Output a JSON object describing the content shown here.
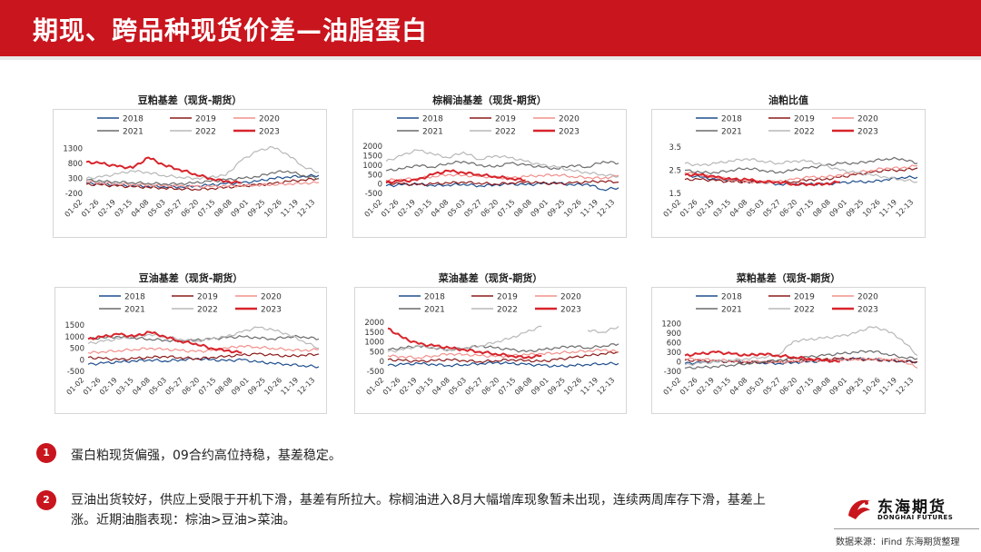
{
  "header": {
    "title": "期现、跨品种现货价差—油脂蛋白"
  },
  "colors": {
    "brand": "#c9151e",
    "2018": "#1f4e8c",
    "2019": "#8b1a1a",
    "2020": "#f0908c",
    "2021": "#6b6b6b",
    "2022": "#b8b8b8",
    "2023": "#d7242b"
  },
  "legend_years": [
    "2018",
    "2019",
    "2020",
    "2021",
    "2022",
    "2023"
  ],
  "x_ticks": [
    "01-02",
    "01-26",
    "02-19",
    "03-15",
    "04-08",
    "05-03",
    "05-27",
    "06-20",
    "07-15",
    "08-08",
    "09-01",
    "09-25",
    "10-26",
    "11-19",
    "12-13"
  ],
  "chart_data": [
    {
      "type": "line",
      "title": "豆粕基差（现货-期货）",
      "ylim": [
        -200,
        1500
      ],
      "yticks": [
        "1300",
        "800",
        "300",
        "-200"
      ],
      "series": [
        {
          "name": "2018",
          "values": [
            150,
            120,
            80,
            60,
            40,
            30,
            20,
            40,
            80,
            120,
            150,
            200,
            300,
            350,
            380,
            400
          ]
        },
        {
          "name": "2019",
          "values": [
            100,
            80,
            40,
            20,
            0,
            -20,
            -40,
            -60,
            -40,
            0,
            40,
            80,
            120,
            200,
            250,
            300
          ]
        },
        {
          "name": "2020",
          "values": [
            200,
            150,
            120,
            100,
            80,
            60,
            40,
            30,
            20,
            40,
            60,
            80,
            100,
            120,
            140,
            160
          ]
        },
        {
          "name": "2021",
          "values": [
            250,
            200,
            180,
            160,
            140,
            120,
            120,
            150,
            200,
            250,
            300,
            350,
            500,
            550,
            400,
            300
          ]
        },
        {
          "name": "2022",
          "values": [
            300,
            350,
            450,
            550,
            500,
            400,
            350,
            300,
            350,
            400,
            900,
            1200,
            1350,
            1100,
            700,
            500
          ]
        },
        {
          "name": "2023",
          "values": [
            850,
            800,
            700,
            650,
            1000,
            750,
            600,
            450,
            300,
            200,
            150,
            null,
            null,
            null,
            null,
            null
          ]
        }
      ]
    },
    {
      "type": "line",
      "title": "棕榈油基差（现货-期货）",
      "ylim": [
        -500,
        2200
      ],
      "yticks": [
        "2000",
        "1500",
        "1000",
        "500",
        "0",
        "-500"
      ],
      "series": [
        {
          "name": "2018",
          "values": [
            -100,
            -50,
            0,
            -80,
            -50,
            0,
            -100,
            -50,
            0,
            -50,
            0,
            50,
            -50,
            0,
            -300,
            -200
          ]
        },
        {
          "name": "2019",
          "values": [
            50,
            0,
            -50,
            0,
            50,
            100,
            50,
            0,
            50,
            100,
            50,
            0,
            50,
            100,
            150,
            100
          ]
        },
        {
          "name": "2020",
          "values": [
            200,
            250,
            300,
            400,
            500,
            450,
            400,
            350,
            300,
            400,
            450,
            500,
            400,
            350,
            300,
            450
          ]
        },
        {
          "name": "2021",
          "values": [
            700,
            800,
            1000,
            900,
            1100,
            1200,
            1000,
            900,
            1100,
            1000,
            900,
            800,
            1000,
            900,
            1200,
            1100
          ]
        },
        {
          "name": "2022",
          "values": [
            1200,
            1500,
            1800,
            1600,
            1400,
            1700,
            1300,
            1500,
            1400,
            1200,
            1000,
            900,
            700,
            600,
            500,
            400
          ]
        },
        {
          "name": "2023",
          "values": [
            100,
            150,
            200,
            500,
            700,
            600,
            500,
            400,
            300,
            200,
            null,
            null,
            null,
            null,
            null,
            null
          ]
        }
      ]
    },
    {
      "type": "line",
      "title": "油粕比值",
      "ylim": [
        1.5,
        3.7
      ],
      "yticks": [
        "3.5",
        "2.5",
        "1.5"
      ],
      "series": [
        {
          "name": "2018",
          "values": [
            2.3,
            2.2,
            2.1,
            2.1,
            2.0,
            2.0,
            1.9,
            1.9,
            1.9,
            1.9,
            1.95,
            2.0,
            2.0,
            2.1,
            2.2,
            2.2
          ]
        },
        {
          "name": "2019",
          "values": [
            2.1,
            2.1,
            2.05,
            2.0,
            2.0,
            2.0,
            2.0,
            2.0,
            2.1,
            2.1,
            2.2,
            2.3,
            2.4,
            2.5,
            2.5,
            2.6
          ]
        },
        {
          "name": "2020",
          "values": [
            2.4,
            2.3,
            2.2,
            2.1,
            2.0,
            2.0,
            2.0,
            2.1,
            2.2,
            2.2,
            2.3,
            2.4,
            2.5,
            2.6,
            2.6,
            2.7
          ]
        },
        {
          "name": "2021",
          "values": [
            2.5,
            2.4,
            2.4,
            2.5,
            2.6,
            2.5,
            2.4,
            2.5,
            2.6,
            2.7,
            2.8,
            2.8,
            2.9,
            3.0,
            3.0,
            2.8
          ]
        },
        {
          "name": "2022",
          "values": [
            2.8,
            2.7,
            2.8,
            2.9,
            3.0,
            2.9,
            2.8,
            2.9,
            2.9,
            2.7,
            2.5,
            2.4,
            2.3,
            2.2,
            2.1,
            2.0
          ]
        },
        {
          "name": "2023",
          "values": [
            2.3,
            2.3,
            2.2,
            2.1,
            2.1,
            2.0,
            2.0,
            1.9,
            1.9,
            1.9,
            2.0,
            null,
            null,
            null,
            null,
            null
          ]
        }
      ]
    },
    {
      "type": "line",
      "title": "豆油基差（现货-期货）",
      "ylim": [
        -500,
        1700
      ],
      "yticks": [
        "1500",
        "1000",
        "500",
        "0",
        "-500"
      ],
      "series": [
        {
          "name": "2018",
          "values": [
            -200,
            -150,
            -100,
            -50,
            0,
            -50,
            0,
            50,
            0,
            -50,
            0,
            -100,
            -150,
            -200,
            -250,
            -300
          ]
        },
        {
          "name": "2019",
          "values": [
            100,
            50,
            0,
            50,
            100,
            150,
            100,
            50,
            100,
            150,
            200,
            250,
            200,
            150,
            200,
            250
          ]
        },
        {
          "name": "2020",
          "values": [
            300,
            350,
            400,
            450,
            500,
            450,
            400,
            350,
            400,
            500,
            600,
            550,
            500,
            450,
            400,
            450
          ]
        },
        {
          "name": "2021",
          "values": [
            900,
            950,
            1000,
            950,
            900,
            850,
            800,
            850,
            900,
            950,
            1000,
            950,
            900,
            1000,
            1000,
            900
          ]
        },
        {
          "name": "2022",
          "values": [
            700,
            800,
            900,
            1000,
            1100,
            1000,
            900,
            800,
            900,
            1000,
            1200,
            1400,
            1300,
            1100,
            800,
            500
          ]
        },
        {
          "name": "2023",
          "values": [
            900,
            1000,
            1100,
            1000,
            1200,
            1000,
            800,
            700,
            500,
            400,
            300,
            null,
            null,
            null,
            null,
            null
          ]
        }
      ]
    },
    {
      "type": "line",
      "title": "菜油基差（现货-期货）",
      "ylim": [
        -500,
        2100
      ],
      "yticks": [
        "2000",
        "1500",
        "1000",
        "500",
        "0",
        "-500"
      ],
      "series": [
        {
          "name": "2018",
          "values": [
            -200,
            -150,
            -100,
            -150,
            -200,
            -150,
            -100,
            -50,
            -100,
            -150,
            -200,
            -250,
            -200,
            -150,
            -100,
            -100
          ]
        },
        {
          "name": "2019",
          "values": [
            100,
            50,
            0,
            50,
            100,
            50,
            0,
            50,
            100,
            50,
            0,
            100,
            200,
            300,
            400,
            500
          ]
        },
        {
          "name": "2020",
          "values": [
            300,
            250,
            200,
            300,
            400,
            350,
            300,
            250,
            300,
            350,
            400,
            450,
            500,
            550,
            600,
            500
          ]
        },
        {
          "name": "2021",
          "values": [
            600,
            700,
            800,
            700,
            600,
            700,
            800,
            700,
            600,
            500,
            600,
            700,
            800,
            700,
            800,
            900
          ]
        },
        {
          "name": "2022",
          "values": [
            500,
            600,
            800,
            700,
            600,
            700,
            800,
            1000,
            1200,
            1500,
            1800,
            null,
            null,
            1600,
            1500,
            1800
          ]
        },
        {
          "name": "2023",
          "values": [
            1700,
            1200,
            900,
            800,
            700,
            600,
            500,
            400,
            300,
            200,
            300,
            null,
            null,
            null,
            null,
            null
          ]
        }
      ]
    },
    {
      "type": "line",
      "title": "菜粕基差（现货-期货）",
      "ylim": [
        -300,
        1300
      ],
      "yticks": [
        "1200",
        "900",
        "600",
        "300",
        "0",
        "-300"
      ],
      "series": [
        {
          "name": "2018",
          "values": [
            -50,
            -30,
            0,
            20,
            0,
            -30,
            -50,
            -20,
            0,
            20,
            50,
            100,
            80,
            50,
            20,
            0
          ]
        },
        {
          "name": "2019",
          "values": [
            50,
            30,
            20,
            0,
            -20,
            0,
            20,
            30,
            50,
            80,
            100,
            80,
            60,
            40,
            20,
            0
          ]
        },
        {
          "name": "2020",
          "values": [
            100,
            80,
            60,
            40,
            20,
            0,
            -20,
            0,
            20,
            40,
            60,
            80,
            100,
            80,
            60,
            -200
          ]
        },
        {
          "name": "2021",
          "values": [
            -200,
            -180,
            -150,
            -100,
            -50,
            0,
            50,
            100,
            150,
            200,
            250,
            300,
            350,
            250,
            150,
            100
          ]
        },
        {
          "name": "2022",
          "values": [
            -100,
            -50,
            0,
            50,
            100,
            150,
            200,
            650,
            700,
            750,
            800,
            900,
            1100,
            1000,
            700,
            200
          ]
        },
        {
          "name": "2023",
          "values": [
            200,
            250,
            300,
            250,
            200,
            250,
            200,
            150,
            100,
            50,
            0,
            null,
            null,
            null,
            null,
            null
          ]
        }
      ]
    }
  ],
  "notes": [
    {
      "num": "1",
      "text": "蛋白粕现货偏强，09合约高位持稳，基差稳定。"
    },
    {
      "num": "2",
      "text": "豆油出货较好，供应上受限于开机下滑，基差有所拉大。棕榈油进入8月大幅增库现象暂未出现，连续两周库存下滑，基差上涨。近期油脂表现：棕油>豆油>菜油。"
    }
  ],
  "logo": {
    "cn": "东海期货",
    "en": "DONGHAI FUTURES"
  },
  "source": "数据来源：iFind 东海期货整理"
}
